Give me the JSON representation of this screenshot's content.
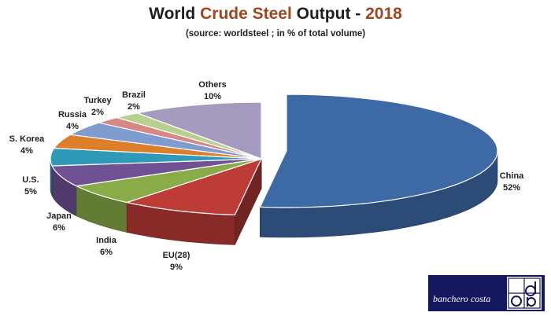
{
  "title": {
    "part1": "World ",
    "part2": "Crude Steel",
    "part3": " Output - ",
    "part4": "2018"
  },
  "subtitle": "(source: worldsteel ; in % of total volume)",
  "chart_data": {
    "type": "pie",
    "title": "World Crude Steel Output - 2018",
    "subtitle": "(source: worldsteel ; in % of total volume)",
    "unit": "%",
    "style": "3d-exploded",
    "slices": [
      {
        "label": "China",
        "value": 52,
        "display": "52%",
        "color": "#3d6aa5"
      },
      {
        "label": "EU(28)",
        "value": 9,
        "display": "9%",
        "color": "#bd3c38"
      },
      {
        "label": "India",
        "value": 6,
        "display": "6%",
        "color": "#8aac48"
      },
      {
        "label": "Japan",
        "value": 6,
        "display": "6%",
        "color": "#6f5194"
      },
      {
        "label": "U.S.",
        "value": 5,
        "display": "5%",
        "color": "#2f9ab7"
      },
      {
        "label": "S. Korea",
        "value": 4,
        "display": "4%",
        "color": "#dd7e2b"
      },
      {
        "label": "Russia",
        "value": 4,
        "display": "4%",
        "color": "#7f9cd0"
      },
      {
        "label": "Turkey",
        "value": 2,
        "display": "2%",
        "color": "#d78785"
      },
      {
        "label": "Brazil",
        "value": 2,
        "display": "2%",
        "color": "#b7d08b"
      },
      {
        "label": "Others",
        "value": 10,
        "display": "10%",
        "color": "#a59bbf"
      }
    ]
  },
  "logo": {
    "text": "banchero costa",
    "mark": "bcc"
  }
}
